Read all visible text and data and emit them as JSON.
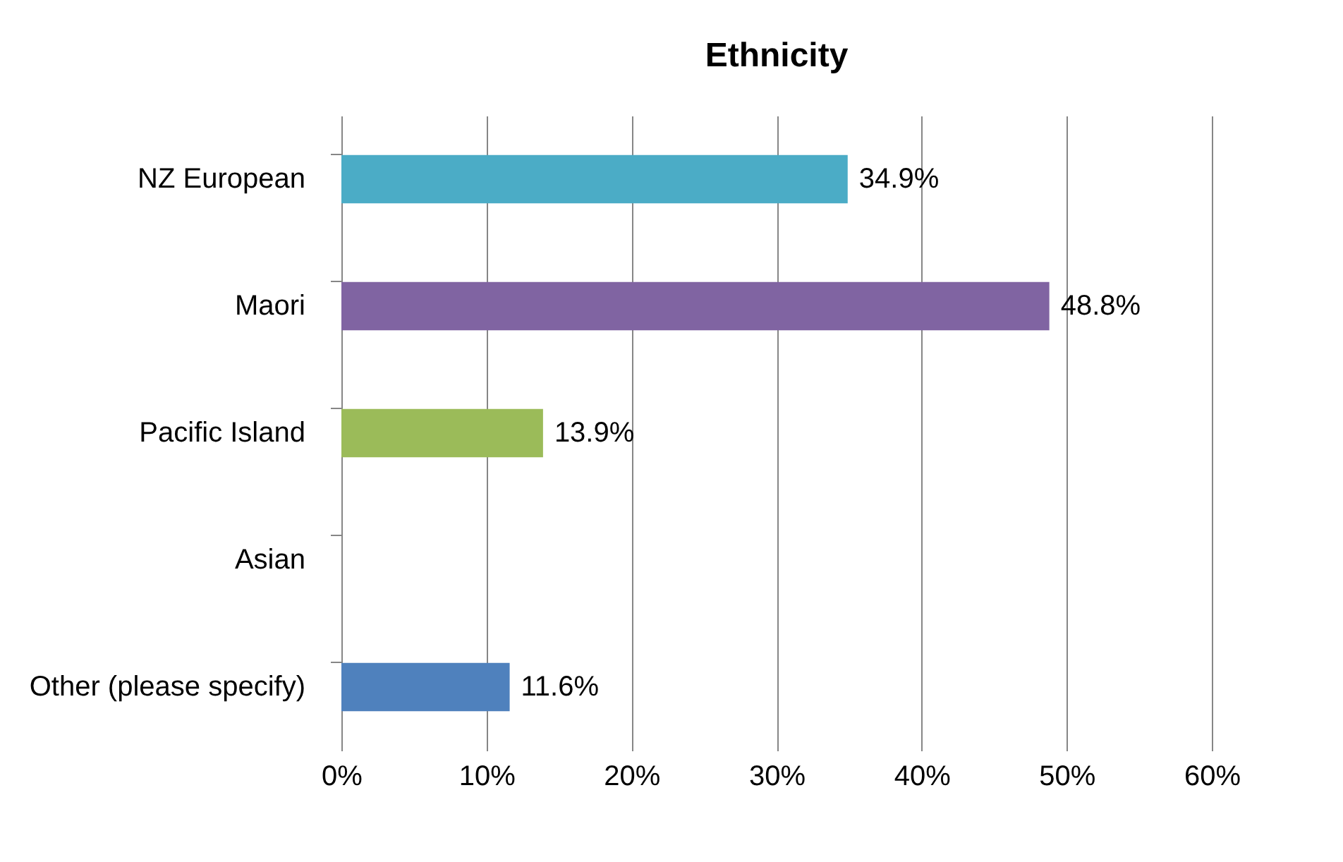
{
  "chart_data": {
    "type": "bar",
    "orientation": "horizontal",
    "title": "Ethnicity",
    "categories": [
      "NZ European",
      "Maori",
      "Pacific Island",
      "Asian",
      "Other (please specify)"
    ],
    "values": [
      34.9,
      48.8,
      13.9,
      null,
      11.6
    ],
    "colors": [
      "#4bacc6",
      "#8064a2",
      "#9bbb59",
      "#4bacc6",
      "#4f81bd"
    ],
    "value_labels": [
      "34.9%",
      "48.8%",
      "13.9%",
      null,
      "11.6%"
    ],
    "xlim": [
      0,
      60
    ],
    "xticks": [
      {
        "value": 0,
        "label": "0%"
      },
      {
        "value": 10,
        "label": "10%"
      },
      {
        "value": 20,
        "label": "20%"
      },
      {
        "value": 30,
        "label": "30%"
      },
      {
        "value": 40,
        "label": "40%"
      },
      {
        "value": 50,
        "label": "50%"
      },
      {
        "value": 60,
        "label": "60%"
      }
    ],
    "grid": "x"
  }
}
